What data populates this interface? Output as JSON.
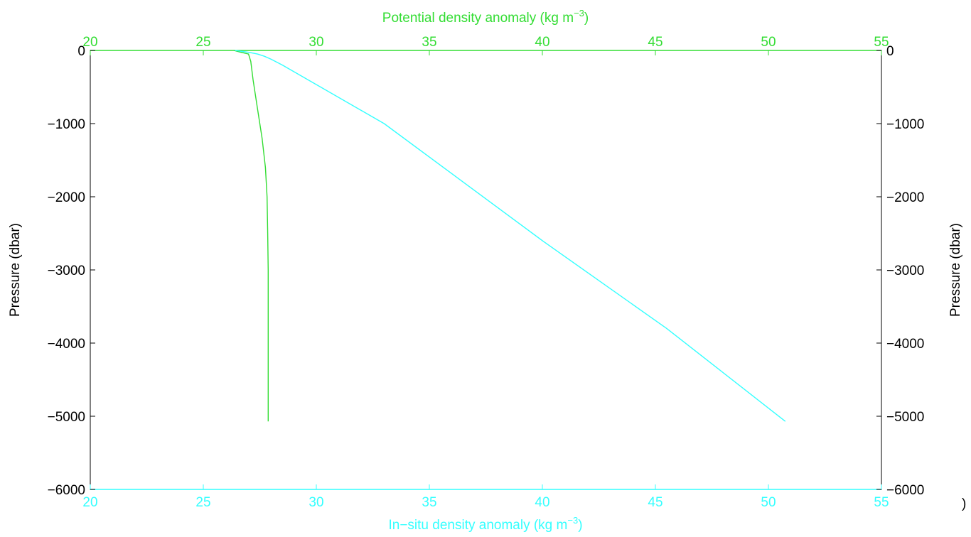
{
  "chart_data": {
    "type": "line",
    "top_xlabel": "Potential density anomaly (kg m",
    "top_xlabel_sup": "−3",
    "top_xlabel_close": ")",
    "bottom_xlabel": "In−situ density anomaly (kg m",
    "bottom_xlabel_sup": "−3",
    "bottom_xlabel_close": ")",
    "left_ylabel": "Pressure (dbar)",
    "right_ylabel": "Pressure (dbar)",
    "xlim": [
      20,
      55
    ],
    "ylim": [
      -6000,
      0
    ],
    "x_ticks": [
      20,
      25,
      30,
      35,
      40,
      45,
      50,
      55
    ],
    "y_ticks": [
      0,
      -1000,
      -2000,
      -3000,
      -4000,
      -5000,
      -6000
    ],
    "y_tick_labels": [
      "0",
      "−1000",
      "−2000",
      "−3000",
      "−4000",
      "−5000",
      "−6000"
    ],
    "grid": false,
    "colors": {
      "potential": "#33dd33",
      "insitu": "#33ffff",
      "axes": "#000000"
    },
    "series": [
      {
        "axis": "top",
        "color": "#33dd33",
        "points": [
          [
            26.35,
            0
          ],
          [
            26.6,
            -20
          ],
          [
            27.0,
            -50
          ],
          [
            27.1,
            -150
          ],
          [
            27.2,
            -400
          ],
          [
            27.4,
            -800
          ],
          [
            27.6,
            -1200
          ],
          [
            27.75,
            -1600
          ],
          [
            27.82,
            -2000
          ],
          [
            27.85,
            -2500
          ],
          [
            27.87,
            -3000
          ],
          [
            27.87,
            -4000
          ],
          [
            27.87,
            -5070
          ]
        ]
      },
      {
        "axis": "bottom",
        "color": "#33ffff",
        "points": [
          [
            26.4,
            0
          ],
          [
            27.0,
            -25
          ],
          [
            27.4,
            -50
          ],
          [
            27.7,
            -80
          ],
          [
            28.0,
            -120
          ],
          [
            28.5,
            -200
          ],
          [
            33.0,
            -1000
          ],
          [
            40.0,
            -2600
          ],
          [
            45.5,
            -3800
          ],
          [
            50.75,
            -5070
          ]
        ]
      }
    ],
    "stray_text": ")"
  }
}
